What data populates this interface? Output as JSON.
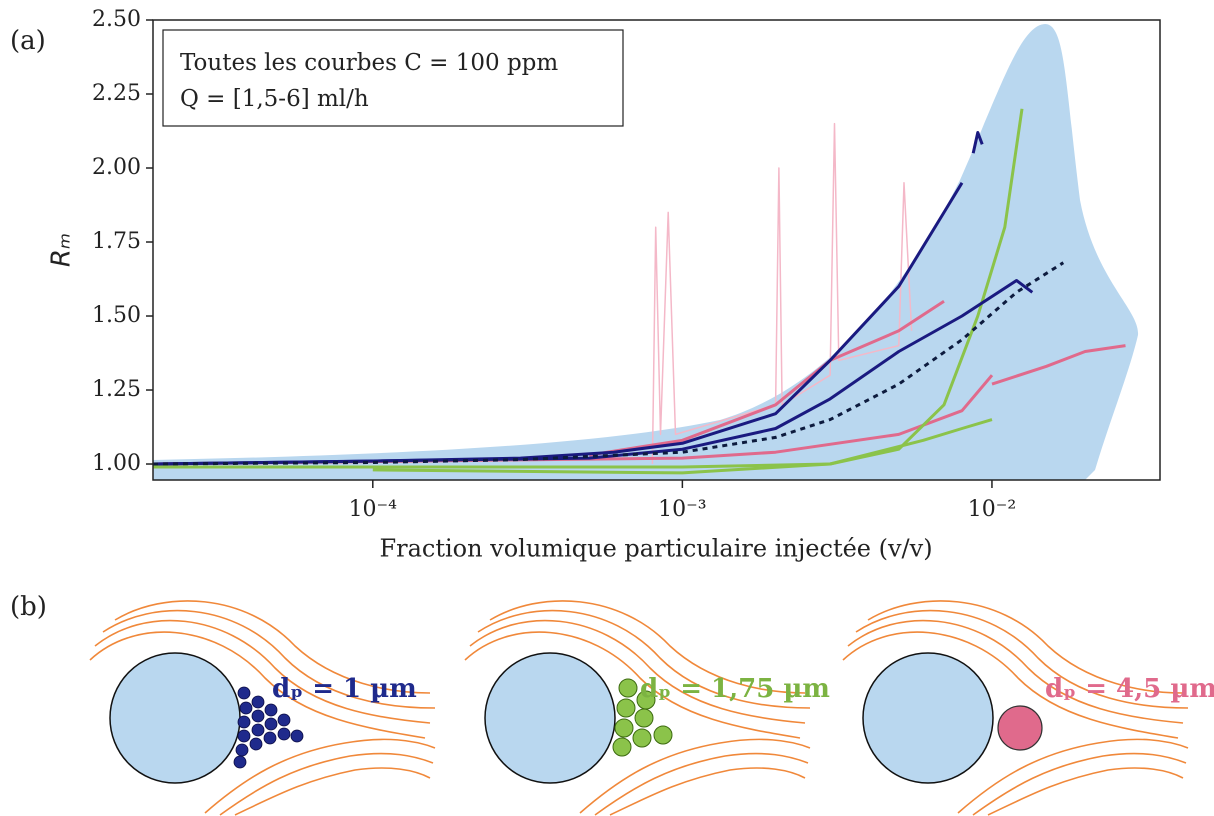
{
  "chart_data": {
    "type": "line",
    "panel_label": "(a)",
    "annotations": [
      "Toutes les courbes C = 100 ppm",
      "Q = [1,5-6] ml/h"
    ],
    "xlabel": "Fraction volumique particulaire injectée (v/v)",
    "ylabel": "Rₘ",
    "xscale": "log",
    "xlim": [
      1.95e-05,
      0.0349
    ],
    "ylim": [
      0.946,
      2.5
    ],
    "xticks": [
      {
        "value": 0.0001,
        "label": "10⁻⁴"
      },
      {
        "value": 0.001,
        "label": "10⁻³"
      },
      {
        "value": 0.01,
        "label": "10⁻²"
      }
    ],
    "yticks": [
      {
        "value": 1,
        "label": "1.00"
      },
      {
        "value": 1.25,
        "label": "1.25"
      },
      {
        "value": 1.5,
        "label": "1.50"
      },
      {
        "value": 1.75,
        "label": "1.75"
      },
      {
        "value": 2,
        "label": "2.00"
      },
      {
        "value": 2.25,
        "label": "2.25"
      },
      {
        "value": 2.5,
        "label": "2.50"
      }
    ],
    "series": [
      {
        "color": "#f4b8c8",
        "width": 1.5,
        "x": [
          0.0008,
          0.00082,
          0.00085,
          0.0009,
          0.00095,
          0.002,
          0.00205,
          0.0021,
          0.003,
          0.0031,
          0.0032,
          0.005,
          0.0052,
          0.0055
        ],
        "values": [
          1.0,
          1.8,
          1.1,
          1.85,
          1.1,
          1.2,
          2.0,
          1.2,
          1.3,
          2.15,
          1.35,
          1.4,
          1.95,
          1.45
        ]
      },
      {
        "color": "#e06a8c",
        "width": 3,
        "x": [
          1.95e-05,
          0.001,
          0.002,
          0.005,
          0.008,
          0.01
        ],
        "values": [
          1.0,
          1.02,
          1.04,
          1.1,
          1.18,
          1.3
        ]
      },
      {
        "color": "#e06a8c",
        "width": 3,
        "x": [
          0.01,
          0.015,
          0.02,
          0.027
        ],
        "values": [
          1.27,
          1.33,
          1.38,
          1.4
        ]
      },
      {
        "color": "#e06a8c",
        "width": 3,
        "x": [
          0.0005,
          0.001,
          0.002,
          0.003,
          0.005,
          0.007
        ],
        "values": [
          1.03,
          1.08,
          1.2,
          1.35,
          1.45,
          1.55
        ]
      },
      {
        "color": "#8bc34a",
        "width": 3,
        "x": [
          1.95e-05,
          0.001,
          0.003,
          0.005,
          0.007,
          0.009,
          0.011,
          0.0125
        ],
        "values": [
          0.99,
          0.99,
          1.0,
          1.05,
          1.2,
          1.5,
          1.8,
          2.2
        ]
      },
      {
        "color": "#8bc34a",
        "width": 3,
        "x": [
          0.0001,
          0.001,
          0.003,
          0.006,
          0.008,
          0.01
        ],
        "values": [
          0.98,
          0.97,
          1.0,
          1.08,
          1.12,
          1.15
        ]
      },
      {
        "color": "#1a1a80",
        "width": 3,
        "x": [
          1.95e-05,
          0.0001,
          0.0003,
          0.0006,
          0.001,
          0.002,
          0.003,
          0.005,
          0.007,
          0.008
        ],
        "values": [
          1.0,
          1.01,
          1.02,
          1.04,
          1.07,
          1.17,
          1.35,
          1.6,
          1.85,
          1.95
        ]
      },
      {
        "color": "#1a1a80",
        "width": 3,
        "x": [
          0.0087,
          0.009,
          0.0093
        ],
        "values": [
          2.05,
          2.12,
          2.08
        ]
      },
      {
        "color": "#1a1a80",
        "width": 3,
        "x": [
          1.95e-05,
          0.0005,
          0.001,
          0.002,
          0.003,
          0.005,
          0.008,
          0.012,
          0.0135
        ],
        "values": [
          1.0,
          1.02,
          1.05,
          1.12,
          1.22,
          1.38,
          1.5,
          1.62,
          1.58
        ]
      },
      {
        "color": "#0d1b3e",
        "width": 3,
        "dash": true,
        "x": [
          1.95e-05,
          0.0001,
          0.0003,
          0.001,
          0.002,
          0.003,
          0.005,
          0.008,
          0.012,
          0.017
        ],
        "values": [
          1.0,
          1.005,
          1.015,
          1.04,
          1.09,
          1.15,
          1.27,
          1.42,
          1.58,
          1.68
        ]
      }
    ]
  },
  "diagram": {
    "panel_label": "(b)",
    "labels": [
      "dₚ = 1 µm",
      "dₚ = 1,75 µm",
      "dₚ = 4,5 µm"
    ]
  }
}
